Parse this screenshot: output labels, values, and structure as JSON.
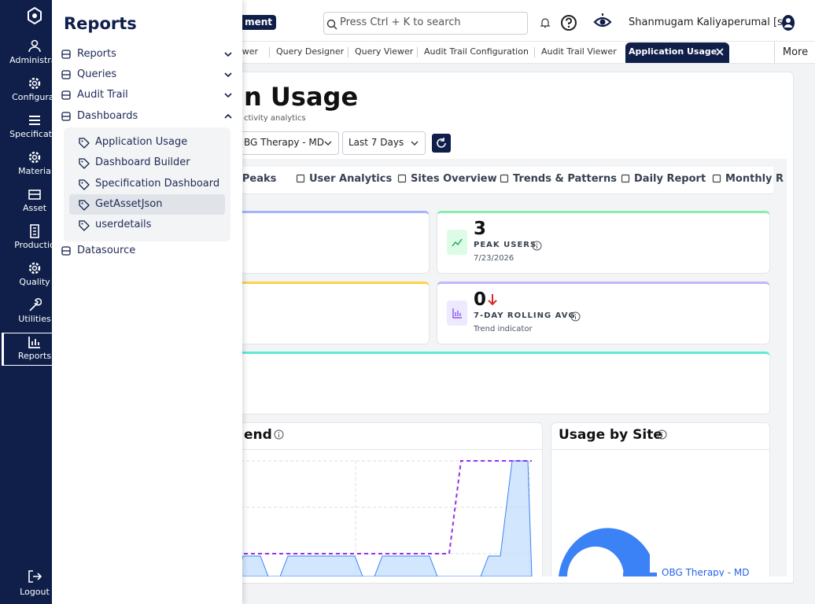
{
  "sidebar": {
    "items": [
      "Administrat",
      "Configurat",
      "Specificatio",
      "Materia",
      "Asset",
      "Productio",
      "Quality",
      "Utilities",
      "Reports"
    ],
    "logout": "Logout"
  },
  "flyout": {
    "title": "Reports",
    "menu": [
      "Reports",
      "Queries",
      "Audit Trail",
      "Dashboards"
    ],
    "dashboards": [
      "Application Usage",
      "Dashboard Builder",
      "Specification Dashboard",
      "GetAssetJson",
      "userdetails"
    ],
    "last": "Datasource"
  },
  "header": {
    "badge": "ment",
    "search": "Press Ctrl + K to search",
    "user": "Shanmugam Kaliyaperumal [sk]"
  },
  "tabs": {
    "items": [
      "ewer",
      "Query Designer",
      "Query Viewer",
      "Audit Trail Configuration",
      "Audit Trail Viewer",
      "Application Usage"
    ],
    "more": "More"
  },
  "page": {
    "title": "n Usage",
    "subtitle": "ctivity analytics",
    "site": "BG Therapy - MD",
    "range": "Last 7 Days"
  },
  "subtabs": [
    "& Peaks",
    "User Analytics",
    "Sites Overview",
    "Trends & Patterns",
    "Daily Report",
    "Monthly R"
  ],
  "stats": [
    {
      "value": 3,
      "label": "PEAK USERS",
      "note": "7/23/2026"
    },
    {
      "value": 0,
      "label": "7-DAY ROLLING AVG",
      "note": "Trend indicator"
    }
  ],
  "trend_card": {
    "title": "end"
  },
  "site_card": {
    "title": "Usage by Site",
    "legend": "OBG Therapy - MD"
  }
}
